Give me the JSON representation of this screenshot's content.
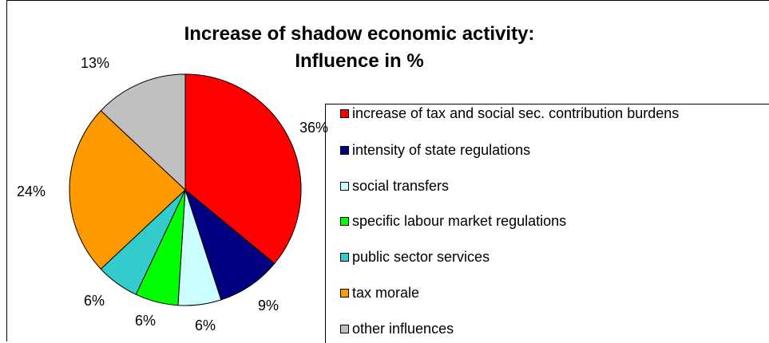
{
  "chart_data": {
    "type": "pie",
    "title_line1": "Increase of shadow economic activity:",
    "title_line2": "Influence in %",
    "slices": [
      {
        "label": "increase of tax and social sec. contribution burdens",
        "value": 36,
        "value_label": "36%",
        "color": "#ff0000"
      },
      {
        "label": "intensity of state regulations",
        "value": 9,
        "value_label": "9%",
        "color": "#000080"
      },
      {
        "label": "social transfers",
        "value": 6,
        "value_label": "6%",
        "color": "#ccffff"
      },
      {
        "label": "specific labour market regulations",
        "value": 6,
        "value_label": "6%",
        "color": "#00ff00"
      },
      {
        "label": "public sector services",
        "value": 6,
        "value_label": "6%",
        "color": "#33cccc"
      },
      {
        "label": "tax morale",
        "value": 24,
        "value_label": "24%",
        "color": "#ff9900"
      },
      {
        "label": "other influences",
        "value": 13,
        "value_label": "13%",
        "color": "#c0c0c0"
      }
    ],
    "legend_position": "right"
  }
}
